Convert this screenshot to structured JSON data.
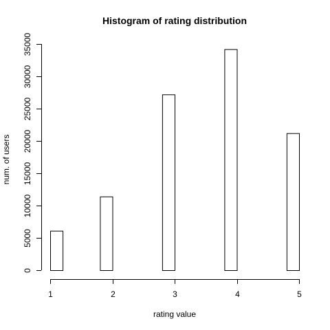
{
  "chart_data": {
    "type": "bar",
    "title": "Histogram of rating distribution",
    "xlabel": "rating value",
    "ylabel": "num. of users",
    "x_ticks": [
      "1",
      "2",
      "3",
      "4",
      "5"
    ],
    "y_ticks": [
      "0",
      "5000",
      "10000",
      "15000",
      "20000",
      "25000",
      "30000",
      "35000"
    ],
    "xlim": [
      1,
      5
    ],
    "ylim": [
      0,
      35000
    ],
    "bins": [
      {
        "x0": 1.0,
        "x1": 1.2,
        "value": 6100
      },
      {
        "x0": 1.8,
        "x1": 2.0,
        "value": 11400
      },
      {
        "x0": 2.8,
        "x1": 3.0,
        "value": 27200
      },
      {
        "x0": 3.8,
        "x1": 4.0,
        "value": 34200
      },
      {
        "x0": 4.8,
        "x1": 5.0,
        "value": 21200
      }
    ],
    "grid": false,
    "bar_fill": "#ffffff",
    "bar_stroke": "#000000"
  }
}
